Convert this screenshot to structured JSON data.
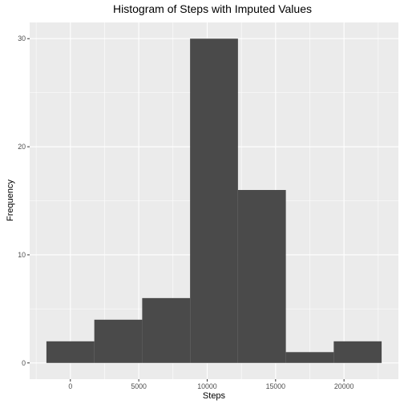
{
  "chart_data": {
    "type": "bar",
    "title": "Histogram of Steps with Imputed Values",
    "xlabel": "Steps",
    "ylabel": "Frequency",
    "bins": [
      {
        "start": -1750,
        "end": 1750,
        "count": 2
      },
      {
        "start": 1750,
        "end": 5250,
        "count": 4
      },
      {
        "start": 5250,
        "end": 8750,
        "count": 6
      },
      {
        "start": 8750,
        "end": 12250,
        "count": 30
      },
      {
        "start": 12250,
        "end": 15750,
        "count": 16
      },
      {
        "start": 15750,
        "end": 19250,
        "count": 1
      },
      {
        "start": 19250,
        "end": 22750,
        "count": 2
      }
    ],
    "xlim": [
      -2975,
      23975
    ],
    "ylim": [
      -1.5,
      31.5
    ],
    "x_ticks": [
      0,
      5000,
      10000,
      15000,
      20000
    ],
    "x_tick_labels": [
      "0",
      "5000",
      "10000",
      "15000",
      "20000"
    ],
    "y_ticks": [
      0,
      10,
      20,
      30
    ],
    "y_tick_labels": [
      "0",
      "10",
      "20",
      "30"
    ],
    "grid": true,
    "bar_color": "#4a4a4a",
    "panel_color": "#ebebeb",
    "grid_color": "#ffffff"
  }
}
